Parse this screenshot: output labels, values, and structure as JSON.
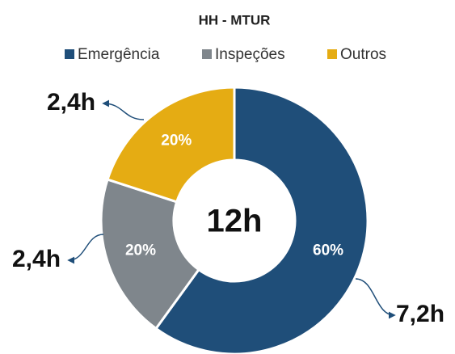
{
  "chart_data": {
    "type": "donut",
    "title": "HH - MTUR",
    "categories": [
      "Emergência",
      "Inspeções",
      "Outros"
    ],
    "values": [
      60,
      20,
      20
    ],
    "value_labels": [
      "60%",
      "20%",
      "20%"
    ],
    "colors": [
      "#1f4e79",
      "#7f868c",
      "#e5ac13"
    ],
    "center_label": "12h",
    "hour_labels": [
      "7,2h",
      "2,4h",
      "2,4h"
    ],
    "legend": "top"
  }
}
